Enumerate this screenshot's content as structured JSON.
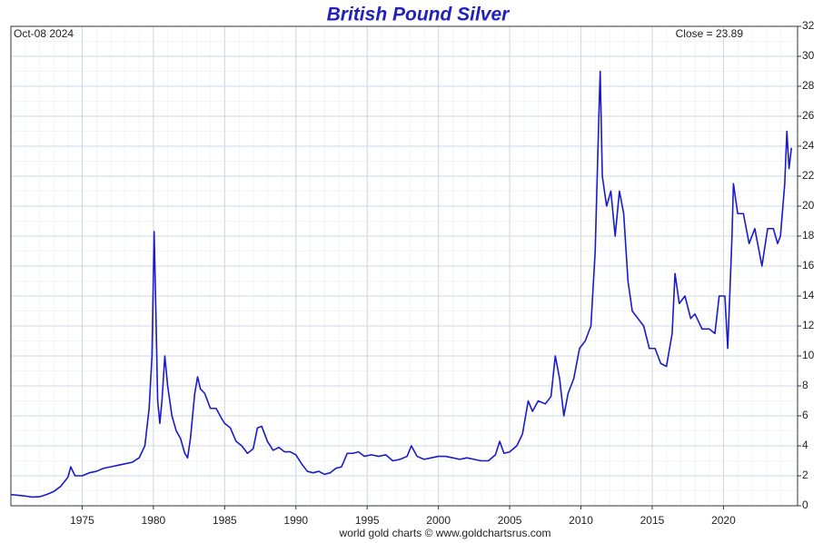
{
  "chart_data": {
    "type": "line",
    "title": "British Pound Silver",
    "date_label": "Oct-08  2024",
    "close_label": "Close = 23.89",
    "footer": "world gold charts © www.goldchartsrus.com",
    "xlim": [
      1970,
      2025.2
    ],
    "xticks": [
      1975,
      1980,
      1985,
      1990,
      1995,
      2000,
      2005,
      2010,
      2015,
      2020
    ],
    "ylim": [
      0,
      32
    ],
    "yticks": [
      0,
      2,
      4,
      6,
      8,
      10,
      12,
      14,
      16,
      18,
      20,
      22,
      24,
      26,
      28,
      30,
      32
    ],
    "grid": true,
    "series": [
      {
        "name": "British Pound Silver",
        "color": "#1a1acc",
        "x": [
          1970.0,
          1970.5,
          1971,
          1971.5,
          1972,
          1972.5,
          1973,
          1973.5,
          1974,
          1974.2,
          1974.5,
          1975,
          1975.5,
          1976,
          1976.5,
          1977,
          1977.5,
          1978,
          1978.5,
          1979,
          1979.4,
          1979.7,
          1979.9,
          1980.05,
          1980.15,
          1980.3,
          1980.45,
          1980.6,
          1980.8,
          1981,
          1981.3,
          1981.6,
          1981.9,
          1982.2,
          1982.4,
          1982.6,
          1982.9,
          1983.1,
          1983.3,
          1983.6,
          1984,
          1984.4,
          1984.8,
          1985,
          1985.4,
          1985.8,
          1986.2,
          1986.6,
          1987,
          1987.3,
          1987.6,
          1988,
          1988.4,
          1988.8,
          1989.2,
          1989.6,
          1990,
          1990.4,
          1990.8,
          1991.2,
          1991.6,
          1992,
          1992.4,
          1992.8,
          1993.2,
          1993.6,
          1994,
          1994.4,
          1994.8,
          1995.3,
          1995.8,
          1996.3,
          1996.8,
          1997.3,
          1997.8,
          1998.1,
          1998.5,
          1999,
          1999.5,
          2000,
          2000.5,
          2001,
          2001.5,
          2002,
          2002.5,
          2003,
          2003.5,
          2004,
          2004.3,
          2004.6,
          2005,
          2005.5,
          2005.9,
          2006.3,
          2006.6,
          2007,
          2007.5,
          2007.9,
          2008.2,
          2008.5,
          2008.8,
          2009.1,
          2009.5,
          2009.9,
          2010.3,
          2010.7,
          2011.0,
          2011.3,
          2011.35,
          2011.5,
          2011.8,
          2012.1,
          2012.4,
          2012.7,
          2013.0,
          2013.3,
          2013.6,
          2014,
          2014.4,
          2014.8,
          2015.2,
          2015.6,
          2016,
          2016.4,
          2016.6,
          2016.9,
          2017.3,
          2017.7,
          2018,
          2018.5,
          2019,
          2019.4,
          2019.7,
          2020.1,
          2020.3,
          2020.6,
          2020.7,
          2021,
          2021.4,
          2021.8,
          2022.2,
          2022.7,
          2023.1,
          2023.5,
          2023.8,
          2024.0,
          2024.3,
          2024.45,
          2024.6,
          2024.77
        ],
        "values": [
          0.75,
          0.7,
          0.65,
          0.58,
          0.6,
          0.75,
          0.95,
          1.3,
          1.9,
          2.6,
          2.0,
          2.0,
          2.2,
          2.3,
          2.5,
          2.6,
          2.7,
          2.8,
          2.9,
          3.2,
          4.0,
          6.5,
          10,
          18.3,
          14,
          7,
          5.5,
          7,
          10,
          8,
          6,
          5,
          4.5,
          3.5,
          3.2,
          4.5,
          7.5,
          8.6,
          7.8,
          7.5,
          6.5,
          6.5,
          5.8,
          5.5,
          5.2,
          4.3,
          4.0,
          3.5,
          3.8,
          5.2,
          5.3,
          4.3,
          3.7,
          3.9,
          3.6,
          3.6,
          3.4,
          2.8,
          2.3,
          2.2,
          2.3,
          2.1,
          2.2,
          2.5,
          2.6,
          3.5,
          3.5,
          3.6,
          3.3,
          3.4,
          3.3,
          3.4,
          3.0,
          3.1,
          3.3,
          4.0,
          3.3,
          3.1,
          3.2,
          3.3,
          3.3,
          3.2,
          3.1,
          3.2,
          3.1,
          3.0,
          3.0,
          3.4,
          4.3,
          3.5,
          3.6,
          4.0,
          4.8,
          7.0,
          6.3,
          7.0,
          6.8,
          7.3,
          10,
          8.5,
          6.0,
          7.5,
          8.5,
          10.5,
          11.0,
          12.0,
          17,
          27.5,
          29,
          22,
          20,
          21,
          18,
          21,
          19.5,
          15,
          13,
          12.5,
          12.0,
          10.5,
          10.5,
          9.5,
          9.3,
          11.5,
          15.5,
          13.5,
          14,
          12.5,
          12.8,
          11.8,
          11.8,
          11.5,
          14,
          14,
          10.5,
          18,
          21.5,
          19.5,
          19.5,
          17.5,
          18.5,
          16,
          18.5,
          18.5,
          17.5,
          18.0,
          21.5,
          25,
          22.5,
          23.89
        ]
      }
    ]
  }
}
